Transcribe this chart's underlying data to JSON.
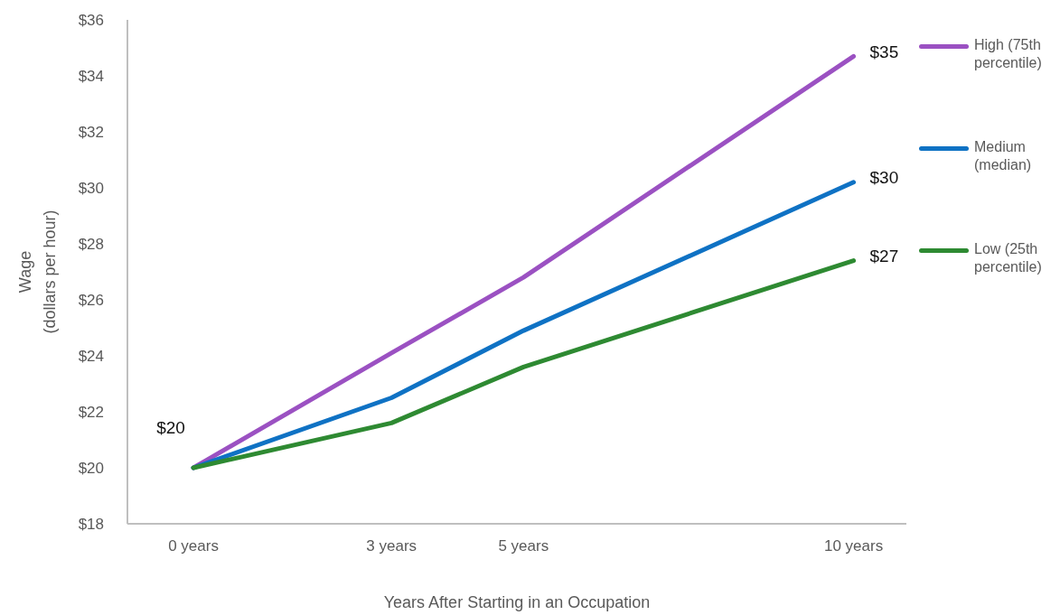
{
  "chart_data": {
    "type": "line",
    "xlabel": "Years After Starting in an Occupation",
    "ylabel": "Wage\n(dollars per hour)",
    "x": [
      0,
      3,
      5,
      10
    ],
    "xlim": [
      -1,
      10.8
    ],
    "xticks": [
      {
        "value": 0,
        "label": "0 years"
      },
      {
        "value": 3,
        "label": "3 years"
      },
      {
        "value": 5,
        "label": "5 years"
      },
      {
        "value": 10,
        "label": "10 years"
      }
    ],
    "ylim": [
      18,
      36
    ],
    "yticks": [
      {
        "value": 18,
        "label": "$18"
      },
      {
        "value": 20,
        "label": "$20"
      },
      {
        "value": 22,
        "label": "$22"
      },
      {
        "value": 24,
        "label": "$24"
      },
      {
        "value": 26,
        "label": "$26"
      },
      {
        "value": 28,
        "label": "$28"
      },
      {
        "value": 30,
        "label": "$30"
      },
      {
        "value": 32,
        "label": "$32"
      },
      {
        "value": 34,
        "label": "$34"
      },
      {
        "value": 36,
        "label": "$36"
      }
    ],
    "series": [
      {
        "name": "High (75th percentile)",
        "color": "#9b51c2",
        "values": [
          20,
          24.1,
          26.8,
          34.7
        ],
        "value_labels": [
          "$20",
          null,
          null,
          "$35"
        ]
      },
      {
        "name": "Medium (median)",
        "color": "#0f72c4",
        "values": [
          20,
          22.5,
          24.9,
          30.2
        ],
        "value_labels": [
          null,
          null,
          null,
          "$30"
        ]
      },
      {
        "name": "Low (25th percentile)",
        "color": "#2e8a32",
        "values": [
          20,
          21.6,
          23.6,
          27.4
        ],
        "value_labels": [
          null,
          null,
          null,
          "$27"
        ]
      }
    ],
    "legend": "right",
    "line_style": "solid"
  }
}
